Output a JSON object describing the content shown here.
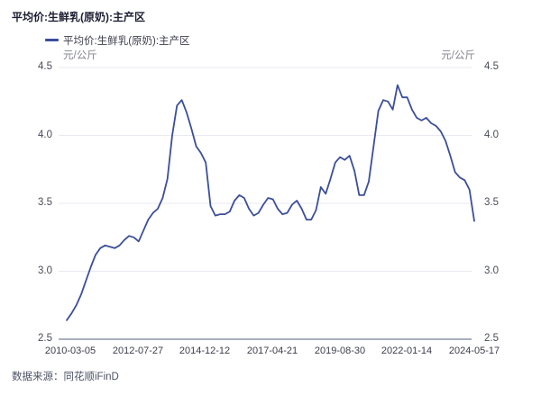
{
  "header": {
    "title": "平均价:生鲜乳(原奶):主产区"
  },
  "legend": {
    "label": "平均价:生鲜乳(原奶):主产区"
  },
  "axes": {
    "unit_left": "元/公斤",
    "unit_right": "元/公斤"
  },
  "footer": {
    "source": "数据来源：同花顺iFinD"
  },
  "colors": {
    "line": "#3b4e9b",
    "grid": "#e9eaf2",
    "axis_line": "#a9aebf",
    "title_text": "#1d1d33",
    "tick_text": "#4a4d5a"
  },
  "chart_data": {
    "type": "line",
    "title": "平均价:生鲜乳(原奶):主产区",
    "ylabel": "元/公斤",
    "xlabel": "",
    "grid": true,
    "legend_position": "top-left",
    "ylim": [
      2.5,
      4.5
    ],
    "y_ticks": [
      4.5,
      4.0,
      3.5,
      3.0,
      2.5
    ],
    "x_tick_labels": [
      "2010-03-05",
      "2012-07-27",
      "2014-12-12",
      "2017-04-21",
      "2019-08-30",
      "2022-01-14",
      "2024-05-17"
    ],
    "x": [
      "2010-03",
      "2010-05",
      "2010-07",
      "2010-09",
      "2010-11",
      "2011-01",
      "2011-03",
      "2011-05",
      "2011-07",
      "2011-09",
      "2011-11",
      "2012-01",
      "2012-03",
      "2012-05",
      "2012-07",
      "2012-09",
      "2012-11",
      "2013-01",
      "2013-03",
      "2013-05",
      "2013-07",
      "2013-09",
      "2013-11",
      "2014-01",
      "2014-03",
      "2014-05",
      "2014-07",
      "2014-09",
      "2014-11",
      "2015-01",
      "2015-03",
      "2015-05",
      "2015-07",
      "2015-09",
      "2015-11",
      "2016-01",
      "2016-03",
      "2016-05",
      "2016-07",
      "2016-09",
      "2016-11",
      "2017-01",
      "2017-03",
      "2017-05",
      "2017-07",
      "2017-09",
      "2017-11",
      "2018-01",
      "2018-03",
      "2018-05",
      "2018-07",
      "2018-09",
      "2018-11",
      "2019-01",
      "2019-03",
      "2019-05",
      "2019-07",
      "2019-09",
      "2019-11",
      "2020-01",
      "2020-03",
      "2020-05",
      "2020-07",
      "2020-09",
      "2020-11",
      "2021-01",
      "2021-03",
      "2021-05",
      "2021-07",
      "2021-09",
      "2021-11",
      "2022-01",
      "2022-03",
      "2022-05",
      "2022-07",
      "2022-09",
      "2022-11",
      "2023-01",
      "2023-03",
      "2023-05",
      "2023-07",
      "2023-09",
      "2023-11",
      "2024-01",
      "2024-03",
      "2024-05"
    ],
    "series": [
      {
        "name": "平均价:生鲜乳(原奶):主产区",
        "values": [
          2.64,
          2.69,
          2.75,
          2.83,
          2.93,
          3.03,
          3.12,
          3.17,
          3.19,
          3.18,
          3.17,
          3.19,
          3.23,
          3.26,
          3.25,
          3.22,
          3.3,
          3.38,
          3.43,
          3.46,
          3.54,
          3.68,
          4.0,
          4.22,
          4.26,
          4.17,
          4.05,
          3.92,
          3.87,
          3.8,
          3.48,
          3.41,
          3.42,
          3.42,
          3.44,
          3.52,
          3.56,
          3.54,
          3.46,
          3.41,
          3.43,
          3.49,
          3.54,
          3.53,
          3.46,
          3.42,
          3.43,
          3.49,
          3.52,
          3.46,
          3.38,
          3.38,
          3.45,
          3.62,
          3.57,
          3.68,
          3.8,
          3.84,
          3.82,
          3.85,
          3.74,
          3.56,
          3.56,
          3.66,
          3.92,
          4.18,
          4.26,
          4.25,
          4.19,
          4.37,
          4.28,
          4.28,
          4.19,
          4.13,
          4.11,
          4.13,
          4.09,
          4.07,
          4.03,
          3.96,
          3.85,
          3.73,
          3.69,
          3.67,
          3.6,
          3.37
        ]
      }
    ]
  }
}
